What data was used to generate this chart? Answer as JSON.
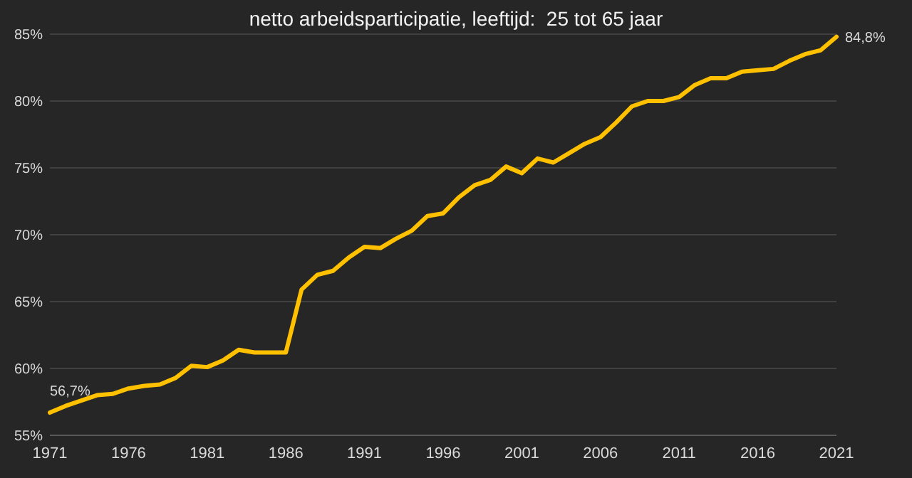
{
  "chart_data": {
    "type": "line",
    "title": "netto arbeidsparticipatie, leeftijd:  25 tot 65 jaar",
    "x": [
      1971,
      1972,
      1973,
      1974,
      1975,
      1976,
      1977,
      1978,
      1979,
      1980,
      1981,
      1982,
      1983,
      1984,
      1985,
      1986,
      1987,
      1988,
      1989,
      1990,
      1991,
      1992,
      1993,
      1994,
      1995,
      1996,
      1997,
      1998,
      1999,
      2000,
      2001,
      2002,
      2003,
      2004,
      2005,
      2006,
      2007,
      2008,
      2009,
      2010,
      2011,
      2012,
      2013,
      2014,
      2015,
      2016,
      2017,
      2018,
      2019,
      2020,
      2021
    ],
    "series": [
      {
        "color": "#ffc000",
        "values": [
          56.7,
          57.2,
          57.6,
          58.0,
          58.1,
          58.5,
          58.7,
          58.8,
          59.3,
          60.2,
          60.1,
          60.6,
          61.4,
          61.2,
          61.2,
          61.2,
          65.9,
          67.0,
          67.3,
          68.3,
          69.1,
          69.0,
          69.7,
          70.3,
          71.4,
          71.6,
          72.8,
          73.7,
          74.1,
          75.1,
          74.6,
          75.7,
          75.4,
          76.1,
          76.8,
          77.3,
          78.4,
          79.6,
          80.0,
          80.0,
          80.3,
          81.2,
          81.7,
          81.7,
          82.2,
          82.3,
          82.4,
          83.0,
          83.5,
          83.8,
          84.8
        ],
        "value_labels": [
          "56,7%",
          null,
          null,
          null,
          null,
          null,
          null,
          null,
          null,
          null,
          null,
          null,
          null,
          null,
          null,
          null,
          null,
          null,
          null,
          null,
          null,
          null,
          null,
          null,
          null,
          null,
          null,
          null,
          null,
          null,
          null,
          null,
          null,
          null,
          null,
          null,
          null,
          null,
          null,
          null,
          null,
          null,
          null,
          null,
          null,
          null,
          null,
          null,
          null,
          null,
          "84,8%"
        ]
      }
    ],
    "xlim": [
      1971,
      2021
    ],
    "xticks": [
      1971,
      1976,
      1981,
      1986,
      1991,
      1996,
      2001,
      2006,
      2011,
      2016,
      2021
    ],
    "ylim": [
      55,
      85
    ],
    "yticks": [
      {
        "value": 55,
        "label": "55%"
      },
      {
        "value": 60,
        "label": "60%"
      },
      {
        "value": 65,
        "label": "65%"
      },
      {
        "value": 70,
        "label": "70%"
      },
      {
        "value": 75,
        "label": "75%"
      },
      {
        "value": 80,
        "label": "80%"
      },
      {
        "value": 85,
        "label": "85%"
      }
    ],
    "grid": "y",
    "marker": "none",
    "line_style": "solid"
  }
}
